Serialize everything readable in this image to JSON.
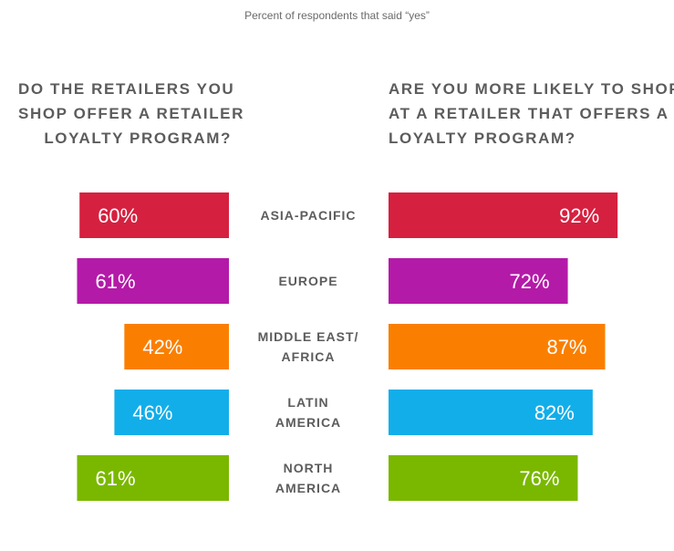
{
  "subtitle": "Percent of respondents that said “yes”",
  "questions": {
    "left": [
      "DO THE RETAILERS YOU",
      "SHOP OFFER A RETAILER",
      "LOYALTY PROGRAM?"
    ],
    "right": [
      "ARE YOU MORE LIKELY TO SHOP",
      "AT A RETAILER THAT OFFERS A",
      "LOYALTY PROGRAM?"
    ]
  },
  "chart_data": {
    "type": "bar",
    "categories": [
      [
        "ASIA-PACIFIC"
      ],
      [
        "EUROPE"
      ],
      [
        "MIDDLE EAST/",
        "AFRICA"
      ],
      [
        "LATIN",
        "AMERICA"
      ],
      [
        "NORTH",
        "AMERICA"
      ]
    ],
    "colors": [
      "#d6203f",
      "#b41aa8",
      "#fa7f00",
      "#12aee9",
      "#7ab800"
    ],
    "unit": "%",
    "series": [
      {
        "values": [
          60,
          61,
          42,
          46,
          61
        ]
      },
      {
        "values": [
          92,
          72,
          87,
          82,
          76
        ]
      }
    ]
  }
}
